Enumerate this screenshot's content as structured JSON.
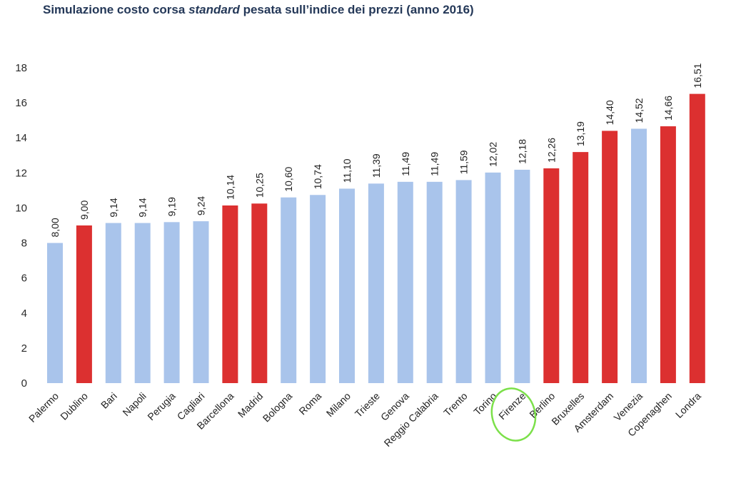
{
  "chart_data": {
    "type": "bar",
    "title_prefix": "Simulazione costo corsa ",
    "title_emph": "standard",
    "title_suffix": " pesata sull’indice dei prezzi (anno 2016)",
    "categories": [
      "Palermo",
      "Dublino",
      "Bari",
      "Napoli",
      "Perugia",
      "Cagliari",
      "Barcellona",
      "Madrid",
      "Bologna",
      "Roma",
      "Milano",
      "Trieste",
      "Genova",
      "Reggio Calabria",
      "Trento",
      "Torino",
      "Firenze",
      "Berlino",
      "Bruxelles",
      "Amsterdam",
      "Venezia",
      "Copenaghen",
      "Londra"
    ],
    "values": [
      8.0,
      9.0,
      9.14,
      9.14,
      9.19,
      9.24,
      10.14,
      10.25,
      10.6,
      10.74,
      11.1,
      11.39,
      11.49,
      11.49,
      11.59,
      12.02,
      12.18,
      12.26,
      13.19,
      14.4,
      14.52,
      14.66,
      16.51
    ],
    "value_labels": [
      "8,00",
      "9,00",
      "9,14",
      "9,14",
      "9,19",
      "9,24",
      "10,14",
      "10,25",
      "10,60",
      "10,74",
      "11,10",
      "11,39",
      "11,49",
      "11,49",
      "11,59",
      "12,02",
      "12,18",
      "12,26",
      "13,19",
      "14,40",
      "14,52",
      "14,66",
      "16,51"
    ],
    "highlight_red": [
      false,
      true,
      false,
      false,
      false,
      false,
      true,
      true,
      false,
      false,
      false,
      false,
      false,
      false,
      false,
      false,
      false,
      true,
      true,
      true,
      false,
      true,
      true
    ],
    "circled_category": "Firenze",
    "ylim": [
      0,
      18
    ],
    "yticks": [
      "0",
      "2",
      "4",
      "6",
      "8",
      "10",
      "12",
      "14",
      "16",
      "18"
    ],
    "grid": false,
    "colors": {
      "italian": "#a9c4eb",
      "foreign": "#dc3030",
      "circle": "#7ce04a"
    }
  }
}
